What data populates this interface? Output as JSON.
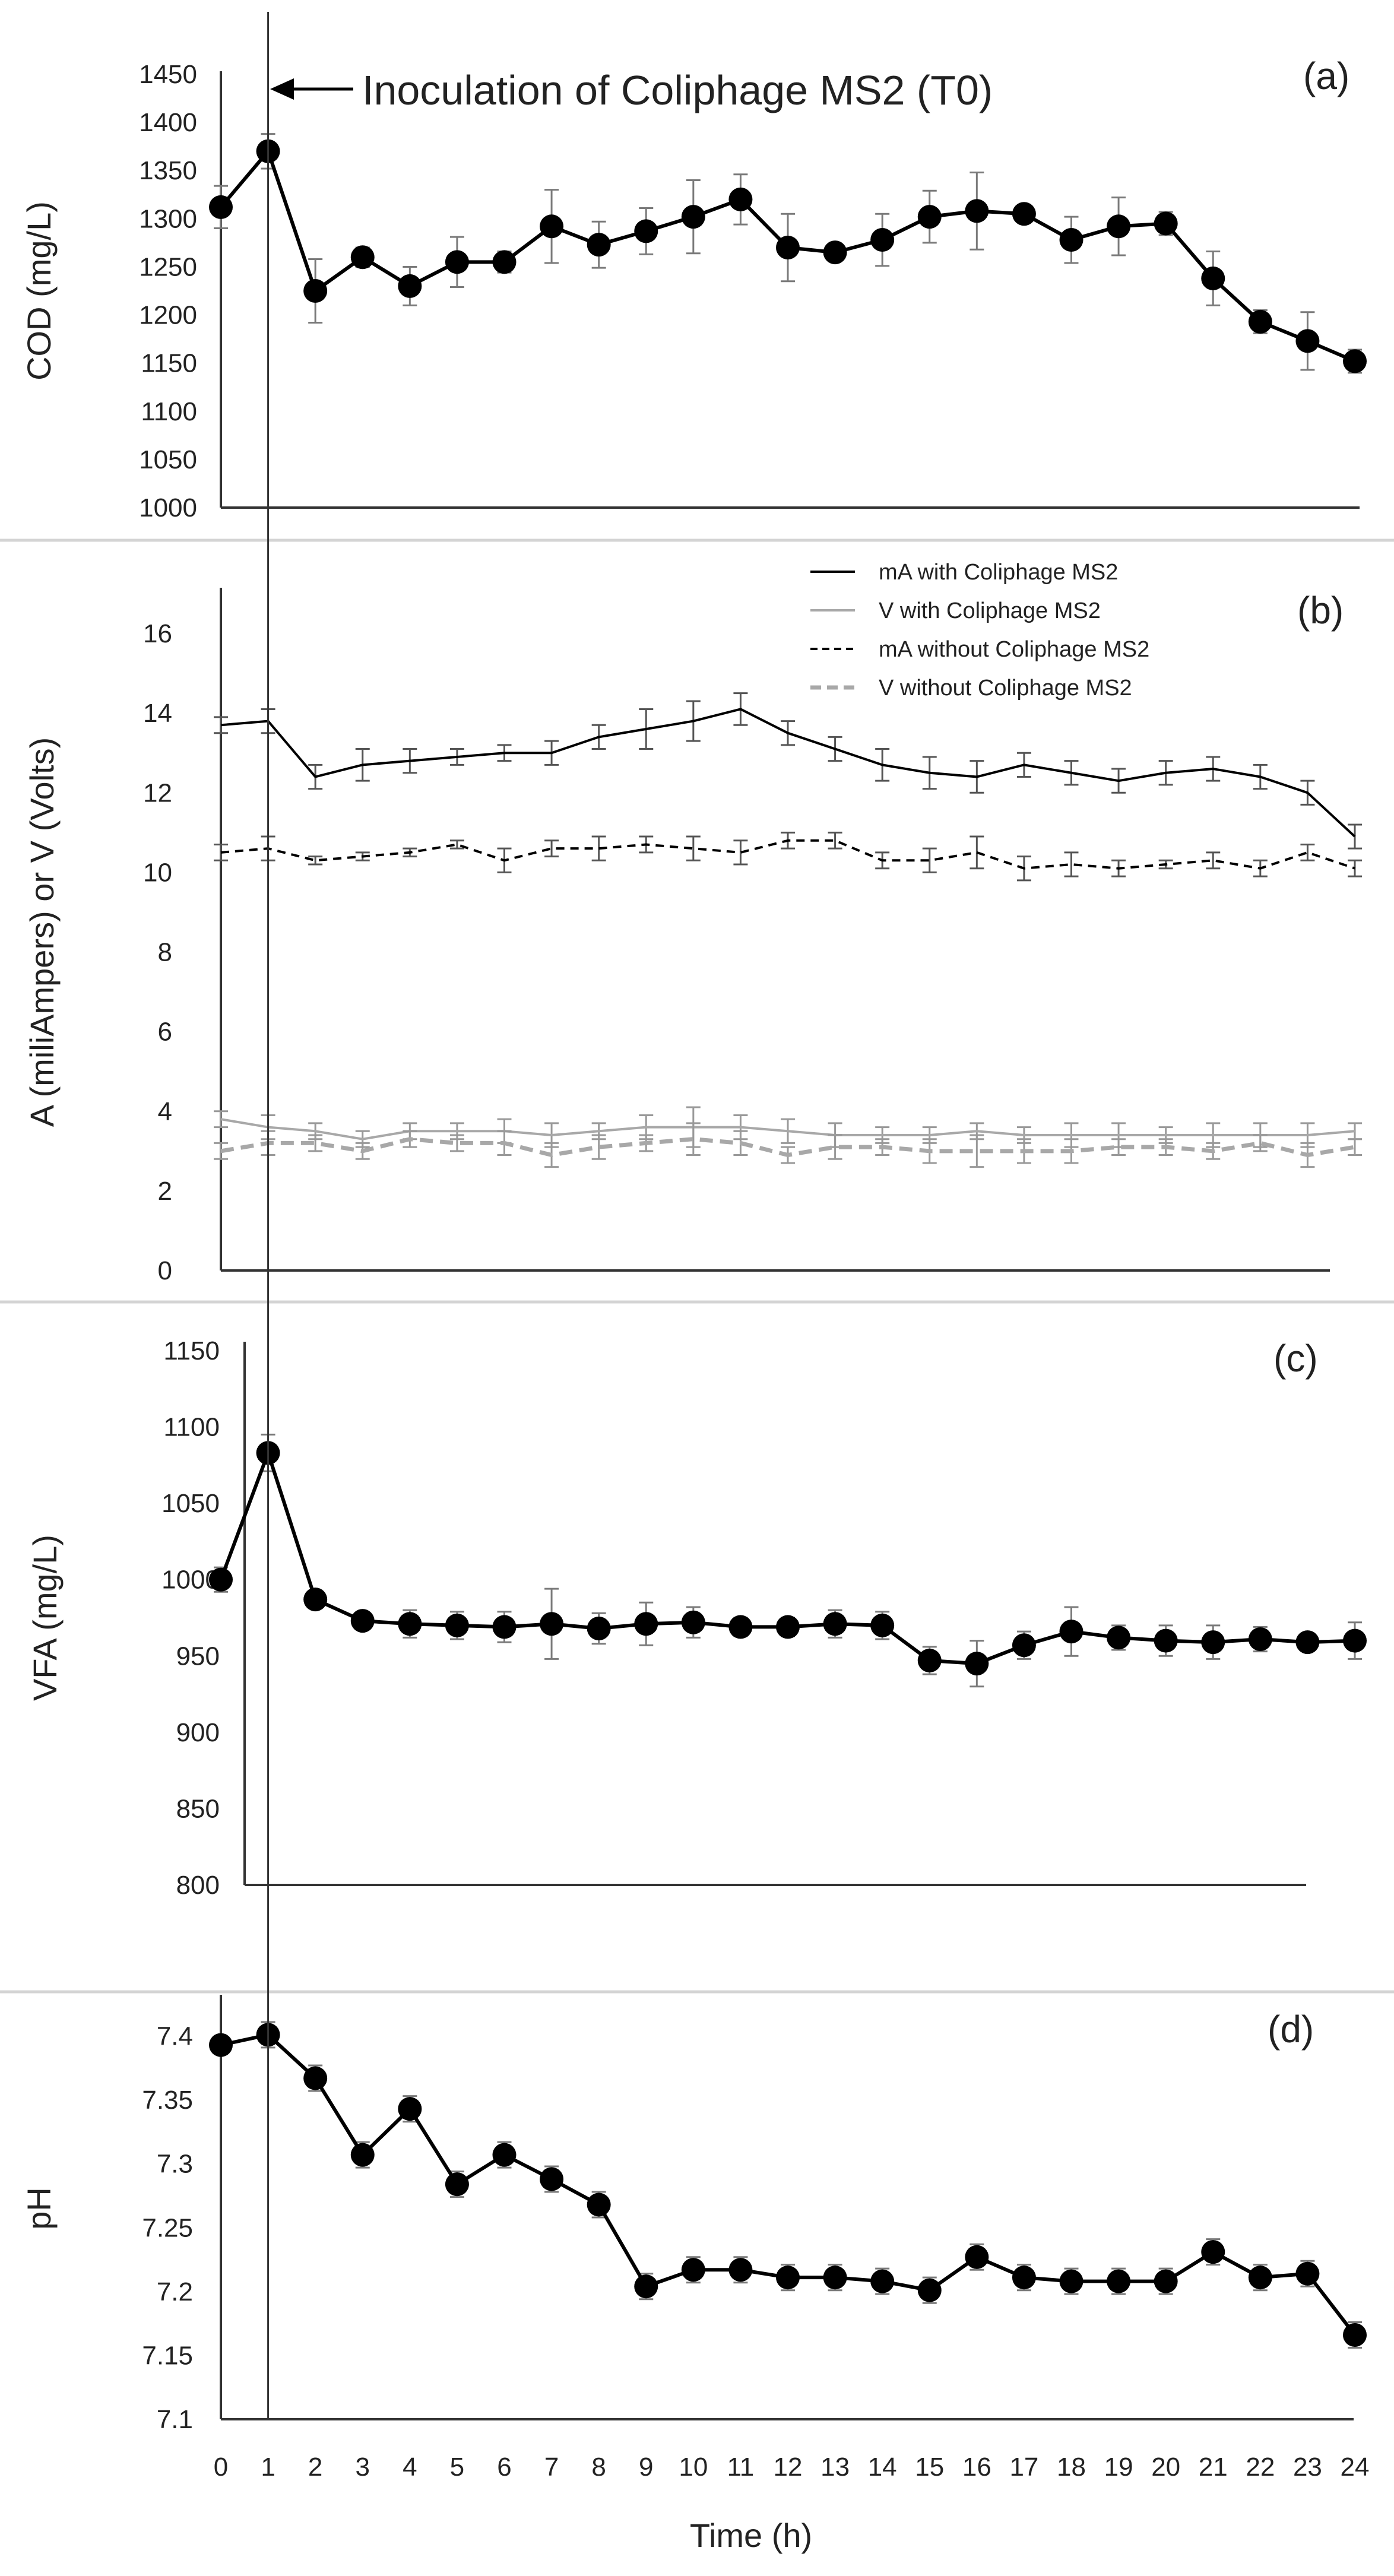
{
  "figure": {
    "annotation": "Inoculation of Coliphage MS2 (T0)",
    "annotation_x": 1,
    "xlabel": "Time (h)",
    "x_ticks": [
      0,
      1,
      2,
      3,
      4,
      5,
      6,
      7,
      8,
      9,
      10,
      11,
      12,
      13,
      14,
      15,
      16,
      17,
      18,
      19,
      20,
      21,
      22,
      23,
      24
    ]
  },
  "chart_data": [
    {
      "id": "a",
      "type": "line",
      "panel_label": "(a)",
      "title": "",
      "xlabel": "Time (h)",
      "ylabel": "COD (mg/L)",
      "ylim": [
        1000,
        1450
      ],
      "yticks": [
        1000,
        1050,
        1100,
        1150,
        1200,
        1250,
        1300,
        1350,
        1400,
        1450
      ],
      "x": [
        0,
        1,
        2,
        3,
        4,
        5,
        6,
        7,
        8,
        9,
        10,
        11,
        12,
        13,
        14,
        15,
        16,
        17,
        18,
        19,
        20,
        21,
        22,
        23,
        24
      ],
      "series": [
        {
          "name": "COD",
          "style": "solid-marker",
          "color": "#000000",
          "values": [
            1312,
            1370,
            1225,
            1260,
            1230,
            1255,
            1255,
            1292,
            1273,
            1287,
            1302,
            1320,
            1270,
            1265,
            1278,
            1302,
            1308,
            1305,
            1278,
            1292,
            1295,
            1238,
            1193,
            1173,
            1152
          ],
          "errors": [
            22,
            18,
            33,
            10,
            20,
            26,
            11,
            38,
            24,
            24,
            38,
            26,
            35,
            8,
            27,
            27,
            40,
            6,
            24,
            30,
            12,
            28,
            12,
            30,
            12
          ]
        }
      ]
    },
    {
      "id": "b",
      "type": "line",
      "panel_label": "(b)",
      "title": "",
      "xlabel": "Time (h)",
      "ylabel": "A (miliAmpers) or V (Volts)",
      "ylim": [
        0,
        17
      ],
      "yticks": [
        0,
        2,
        4,
        6,
        8,
        10,
        12,
        14,
        16
      ],
      "x": [
        0,
        1,
        2,
        3,
        4,
        5,
        6,
        7,
        8,
        9,
        10,
        11,
        12,
        13,
        14,
        15,
        16,
        17,
        18,
        19,
        20,
        21,
        22,
        23,
        24
      ],
      "legend": [
        "mA with Coliphage MS2",
        "V with Coliphage MS2",
        "mA without Coliphage MS2",
        "V without Coliphage MS2"
      ],
      "series": [
        {
          "name": "mA with Coliphage MS2",
          "style": "solid",
          "color": "#000000",
          "values": [
            13.7,
            13.8,
            12.4,
            12.7,
            12.8,
            12.9,
            13.0,
            13.0,
            13.4,
            13.6,
            13.8,
            14.1,
            13.5,
            13.1,
            12.7,
            12.5,
            12.4,
            12.7,
            12.5,
            12.3,
            12.5,
            12.6,
            12.4,
            12.0,
            10.9
          ],
          "errors": [
            0.2,
            0.3,
            0.3,
            0.4,
            0.3,
            0.2,
            0.2,
            0.3,
            0.3,
            0.5,
            0.5,
            0.4,
            0.3,
            0.3,
            0.4,
            0.4,
            0.4,
            0.3,
            0.3,
            0.3,
            0.3,
            0.3,
            0.3,
            0.3,
            0.3
          ]
        },
        {
          "name": "V with Coliphage MS2",
          "style": "solid",
          "color": "#a8a8a8",
          "values": [
            3.8,
            3.6,
            3.5,
            3.3,
            3.5,
            3.5,
            3.5,
            3.4,
            3.5,
            3.6,
            3.6,
            3.6,
            3.5,
            3.4,
            3.4,
            3.4,
            3.5,
            3.4,
            3.4,
            3.4,
            3.4,
            3.4,
            3.4,
            3.4,
            3.5
          ],
          "errors": [
            0.2,
            0.3,
            0.2,
            0.2,
            0.2,
            0.2,
            0.3,
            0.3,
            0.2,
            0.3,
            0.5,
            0.3,
            0.3,
            0.3,
            0.2,
            0.2,
            0.2,
            0.2,
            0.3,
            0.3,
            0.2,
            0.3,
            0.3,
            0.3,
            0.2
          ]
        },
        {
          "name": "mA without Coliphage MS2",
          "style": "dashed",
          "color": "#000000",
          "values": [
            10.5,
            10.6,
            10.3,
            10.4,
            10.5,
            10.7,
            10.3,
            10.6,
            10.6,
            10.7,
            10.6,
            10.5,
            10.8,
            10.8,
            10.3,
            10.3,
            10.5,
            10.1,
            10.2,
            10.1,
            10.2,
            10.3,
            10.1,
            10.5,
            10.1
          ],
          "errors": [
            0.2,
            0.3,
            0.1,
            0.1,
            0.1,
            0.1,
            0.3,
            0.2,
            0.3,
            0.2,
            0.3,
            0.3,
            0.2,
            0.2,
            0.2,
            0.3,
            0.4,
            0.3,
            0.3,
            0.2,
            0.1,
            0.2,
            0.2,
            0.2,
            0.2
          ]
        },
        {
          "name": "V without Coliphage MS2",
          "style": "dashed",
          "color": "#a8a8a8",
          "values": [
            3.0,
            3.2,
            3.2,
            3.0,
            3.3,
            3.2,
            3.2,
            2.9,
            3.1,
            3.2,
            3.3,
            3.2,
            2.9,
            3.1,
            3.1,
            3.0,
            3.0,
            3.0,
            3.0,
            3.1,
            3.1,
            3.0,
            3.2,
            2.9,
            3.1
          ],
          "errors": [
            0.2,
            0.3,
            0.2,
            0.2,
            0.2,
            0.2,
            0.3,
            0.3,
            0.3,
            0.2,
            0.4,
            0.3,
            0.2,
            0.3,
            0.2,
            0.3,
            0.4,
            0.3,
            0.3,
            0.2,
            0.2,
            0.2,
            0.2,
            0.3,
            0.2
          ]
        }
      ]
    },
    {
      "id": "c",
      "type": "line",
      "panel_label": "(c)",
      "title": "",
      "xlabel": "Time (h)",
      "ylabel": "VFA (mg/L)",
      "ylim": [
        800,
        1150
      ],
      "yticks": [
        800,
        850,
        900,
        950,
        1000,
        1050,
        1100,
        1150
      ],
      "x": [
        0,
        1,
        2,
        3,
        4,
        5,
        6,
        7,
        8,
        9,
        10,
        11,
        12,
        13,
        14,
        15,
        16,
        17,
        18,
        19,
        20,
        21,
        22,
        23,
        24
      ],
      "series": [
        {
          "name": "VFA",
          "style": "solid-marker",
          "color": "#000000",
          "values": [
            1000,
            1083,
            987,
            973,
            971,
            970,
            969,
            971,
            968,
            971,
            972,
            969,
            969,
            971,
            970,
            947,
            945,
            957,
            966,
            962,
            960,
            959,
            961,
            959,
            960
          ],
          "errors": [
            8,
            12,
            4,
            4,
            9,
            9,
            10,
            23,
            10,
            14,
            10,
            6,
            6,
            9,
            9,
            9,
            15,
            9,
            16,
            8,
            10,
            11,
            8,
            5,
            12
          ]
        }
      ]
    },
    {
      "id": "d",
      "type": "line",
      "panel_label": "(d)",
      "title": "",
      "xlabel": "Time (h)",
      "ylabel": "pH",
      "ylim": [
        7.1,
        7.43
      ],
      "yticks": [
        7.1,
        7.15,
        7.2,
        7.25,
        7.3,
        7.35,
        7.4
      ],
      "x": [
        0,
        1,
        2,
        3,
        4,
        5,
        6,
        7,
        8,
        9,
        10,
        11,
        12,
        13,
        14,
        15,
        16,
        17,
        18,
        19,
        20,
        21,
        22,
        23,
        24
      ],
      "series": [
        {
          "name": "pH",
          "style": "solid-marker",
          "color": "#000000",
          "values": [
            7.393,
            7.401,
            7.367,
            7.307,
            7.343,
            7.284,
            7.307,
            7.288,
            7.268,
            7.204,
            7.217,
            7.217,
            7.211,
            7.211,
            7.208,
            7.201,
            7.227,
            7.211,
            7.208,
            7.208,
            7.208,
            7.231,
            7.211,
            7.214,
            7.166
          ],
          "errors": [
            0.006,
            0.01,
            0.01,
            0.01,
            0.01,
            0.01,
            0.01,
            0.01,
            0.01,
            0.01,
            0.01,
            0.01,
            0.01,
            0.01,
            0.01,
            0.01,
            0.01,
            0.01,
            0.01,
            0.01,
            0.01,
            0.01,
            0.01,
            0.01,
            0.01
          ]
        }
      ]
    }
  ]
}
